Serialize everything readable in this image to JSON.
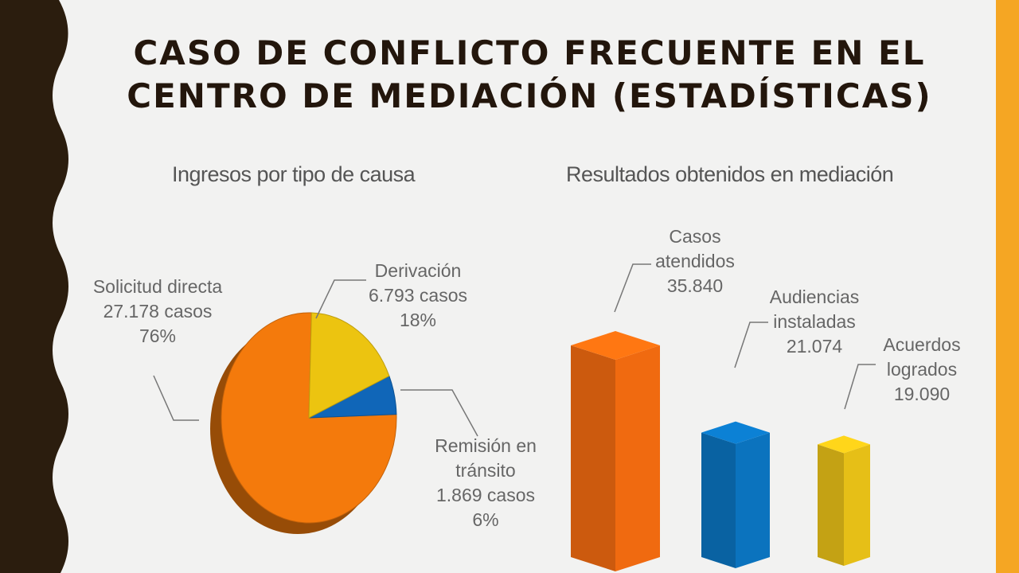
{
  "slide": {
    "title": "Caso de conflicto frecuente en el centro de mediación (estadísticas)"
  },
  "colors": {
    "sidebar": "#2b1d0e",
    "accent_bar": "#f5a623",
    "background": "#f2f2f1"
  },
  "chart_data": [
    {
      "type": "pie",
      "title": "Ingresos por tipo de causa",
      "categories": [
        "Solicitud directa",
        "Derivación",
        "Remisión en tránsito"
      ],
      "values": [
        27178,
        6793,
        1869
      ],
      "value_labels": [
        "27.178 casos",
        "6.793 casos",
        "1.869 casos"
      ],
      "percent_labels": [
        "76%",
        "18%",
        "6%"
      ],
      "percents": [
        76,
        18,
        6
      ],
      "colors": [
        "#f47a0c",
        "#ecc410",
        "#1066b8"
      ],
      "label_lines": [
        [
          "Solicitud directa",
          "27.178 casos",
          "76%"
        ],
        [
          "Derivación",
          "6.793 casos",
          "18%"
        ],
        [
          "Remisión en",
          "tránsito",
          "1.869 casos",
          "6%"
        ]
      ]
    },
    {
      "type": "bar",
      "title": "Resultados obtenidos en mediación",
      "categories": [
        "Casos atendidos",
        "Audiencias instaladas",
        "Acuerdos logrados"
      ],
      "values": [
        35840,
        21074,
        19090
      ],
      "value_labels": [
        "35.840",
        "21.074",
        "19.090"
      ],
      "colors": [
        "#f06a10",
        "#0b73be",
        "#e6bf17"
      ],
      "label_lines": [
        [
          "Casos",
          "atendidos",
          "35.840"
        ],
        [
          "Audiencias",
          "instaladas",
          "21.074"
        ],
        [
          "Acuerdos",
          "logrados",
          "19.090"
        ]
      ]
    }
  ]
}
